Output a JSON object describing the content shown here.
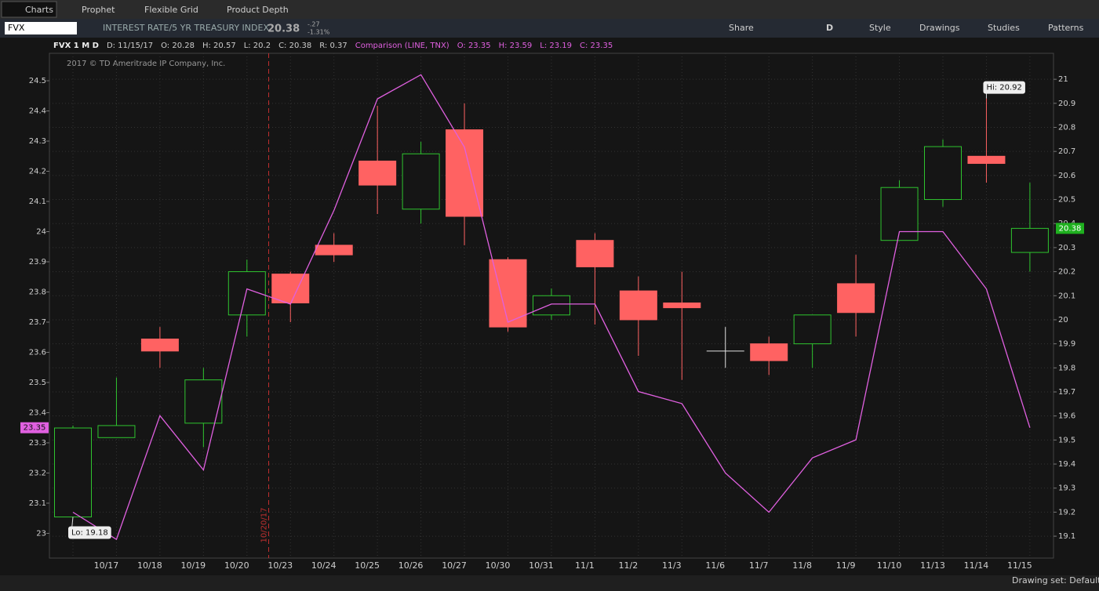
{
  "ui": {
    "tabs": [
      "Charts",
      "Prophet",
      "Flexible Grid",
      "Product Depth"
    ],
    "symbol": "FVX",
    "description": "INTEREST RATE/5 YR TREASURY INDEX",
    "last": "20.38",
    "change": "-.27",
    "change_pct": "-1.31%",
    "toolbar": [
      "Share",
      "D",
      "Style",
      "Drawings",
      "Studies",
      "Patterns"
    ],
    "header": [
      "FVX 1 M D",
      "D: 11/15/17",
      "O: 20.28",
      "H: 20.57",
      "L: 20.2",
      "C: 20.38",
      "R: 0.37"
    ],
    "comparison_header": [
      "Comparison (LINE, TNX)",
      "O: 23.35",
      "H: 23.59",
      "L: 23.19",
      "C: 23.35"
    ],
    "copyright": "2017 © TD Ameritrade IP Company, Inc.",
    "footer": "Drawing set: Default"
  },
  "chart_data": {
    "type": "candlestick",
    "categories": [
      null,
      "10/17",
      "10/18",
      "10/19",
      "10/20",
      "10/23",
      "10/24",
      "10/25",
      "10/26",
      "10/27",
      "10/30",
      "10/31",
      "11/1",
      "11/2",
      "11/3",
      "11/6",
      "11/7",
      "11/8",
      "11/9",
      "11/10",
      "11/13",
      "11/14",
      "11/15"
    ],
    "series": [
      {
        "name": "FVX",
        "axis": "y2",
        "up_color": "#2fc42f",
        "down_color": "#ff6262",
        "flat_color": "#e0e0e0",
        "open": [
          19.18,
          19.51,
          19.92,
          19.57,
          20.02,
          20.19,
          20.31,
          20.66,
          20.46,
          20.79,
          20.25,
          20.02,
          20.33,
          20.12,
          20.07,
          19.87,
          19.9,
          19.9,
          20.15,
          20.33,
          20.5,
          20.68,
          20.28
        ],
        "high": [
          19.56,
          19.76,
          19.97,
          19.8,
          20.25,
          20.2,
          20.36,
          20.89,
          20.74,
          20.9,
          20.26,
          20.13,
          20.36,
          20.18,
          20.2,
          19.97,
          19.93,
          20.02,
          20.27,
          20.58,
          20.75,
          20.92,
          20.57
        ],
        "low": [
          19.18,
          19.51,
          19.8,
          19.47,
          19.93,
          19.99,
          20.24,
          20.44,
          20.4,
          20.31,
          19.95,
          20.0,
          19.98,
          19.85,
          19.75,
          19.8,
          19.77,
          19.8,
          19.93,
          20.33,
          20.47,
          20.57,
          20.2
        ],
        "close": [
          19.55,
          19.56,
          19.87,
          19.75,
          20.2,
          20.07,
          20.27,
          20.56,
          20.69,
          20.43,
          19.97,
          20.1,
          20.22,
          20.0,
          20.05,
          19.87,
          19.83,
          20.02,
          20.03,
          20.55,
          20.72,
          20.65,
          20.38
        ]
      },
      {
        "name": "Comparison (LINE, TNX)",
        "axis": "y",
        "color": "#e060e0",
        "values": [
          23.07,
          22.98,
          23.39,
          23.21,
          23.81,
          23.76,
          24.07,
          24.44,
          24.52,
          24.28,
          23.7,
          23.76,
          23.76,
          23.47,
          23.43,
          23.2,
          23.07,
          23.25,
          23.31,
          24.0,
          24.0,
          23.81,
          23.35
        ]
      }
    ],
    "ylim": [
      22.918,
      24.591
    ],
    "yticks": [
      23,
      23.1,
      23.2,
      23.3,
      23.4,
      23.5,
      23.6,
      23.7,
      23.8,
      23.9,
      24,
      24.1,
      24.2,
      24.3,
      24.4,
      24.5
    ],
    "y2lim": [
      19.009,
      21.108
    ],
    "y2ticks": [
      19.1,
      19.2,
      19.3,
      19.4,
      19.5,
      19.6,
      19.7,
      19.8,
      19.9,
      20,
      20.1,
      20.2,
      20.3,
      20.4,
      20.5,
      20.6,
      20.7,
      20.8,
      20.9,
      21
    ],
    "grid": true,
    "annotations": [
      {
        "text": "Hi: 20.92",
        "series": 0,
        "index": 21
      },
      {
        "text": "Lo: 19.18",
        "series": 0,
        "index": 0
      },
      {
        "text": "10/20/17",
        "between": [
          4,
          5
        ]
      }
    ]
  }
}
